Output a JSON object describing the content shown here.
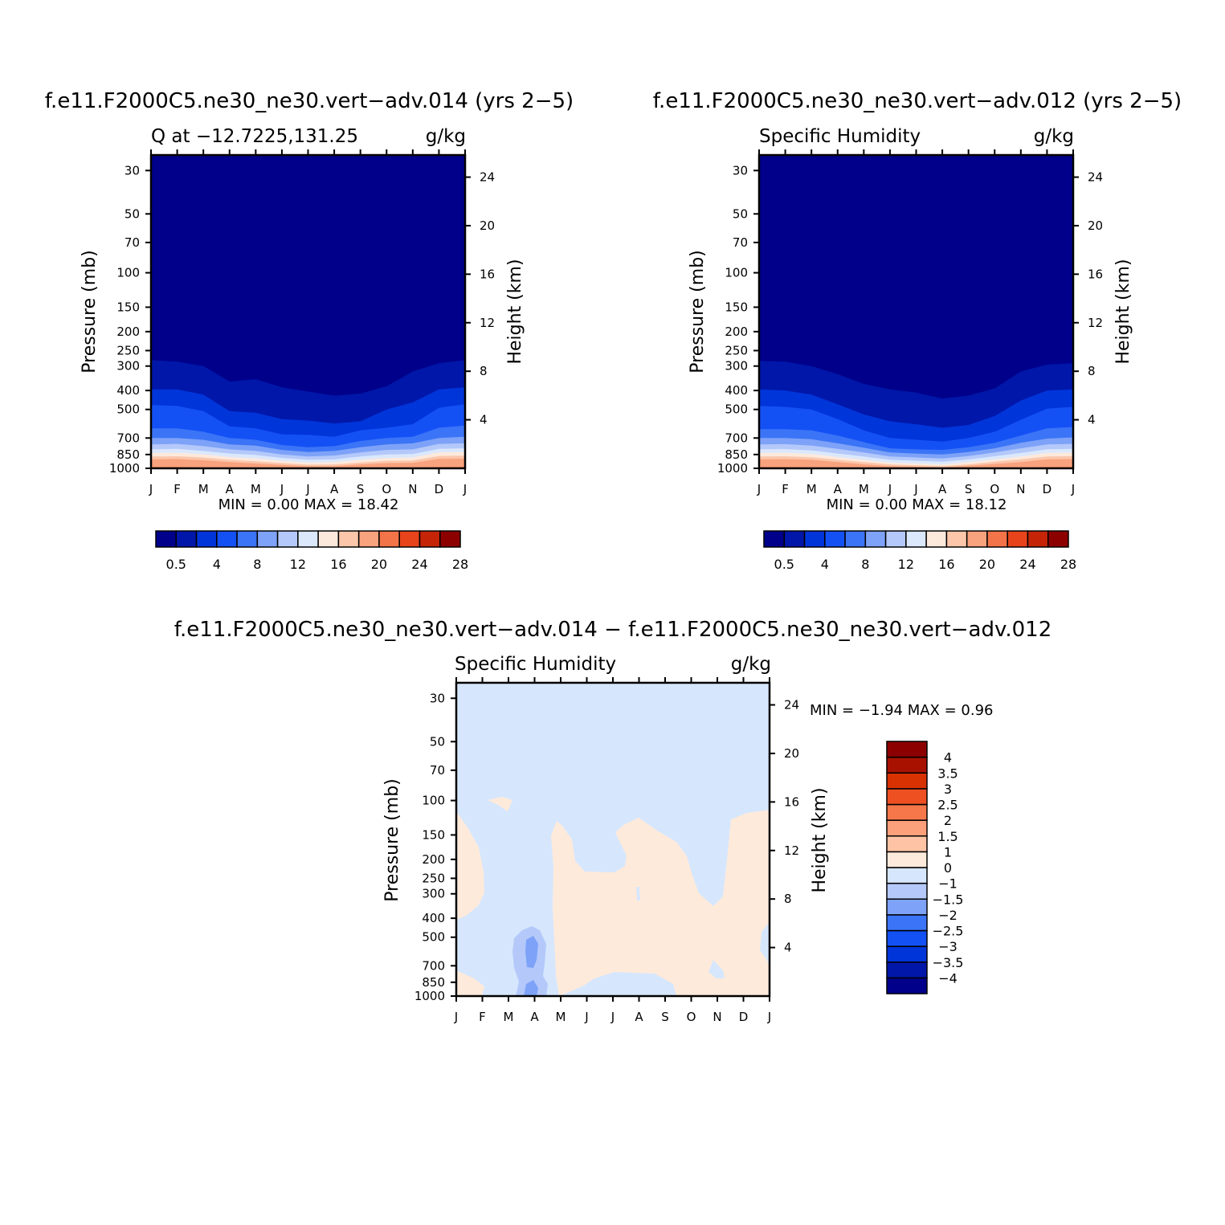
{
  "colors": {
    "q_scale": [
      "#00008a",
      "#0017a9",
      "#0035d9",
      "#1451f5",
      "#3b74f6",
      "#7da2f8",
      "#b4c9fa",
      "#dbe8fc",
      "#fde9dc",
      "#fbc6aa",
      "#f9a27e",
      "#f47449",
      "#e8441c",
      "#c52506",
      "#8d0000"
    ],
    "diff_scale": [
      "#00008a",
      "#0017a9",
      "#0035d9",
      "#1451f5",
      "#3b74f6",
      "#7da2f8",
      "#b4c9fa",
      "#d6e7fd",
      "#feeadb",
      "#fdc3a4",
      "#fba07a",
      "#f6784a",
      "#ee5022",
      "#d83203",
      "#a81100",
      "#8d0000"
    ]
  },
  "panels": {
    "top_left": {
      "title": "f.e11.F2000C5.ne30_ne30.vert−adv.014 (yrs  2−5)",
      "left_label": "Q  at  −12.7225,131.25",
      "units": "g/kg",
      "ylabel": "Pressure  (mb)",
      "y2label": "Height  (km)",
      "stats": "MIN  =      0.00  MAX  =    18.42"
    },
    "top_right": {
      "title": "f.e11.F2000C5.ne30_ne30.vert−adv.012 (yrs  2−5)",
      "left_label": "Specific  Humidity",
      "units": "g/kg",
      "ylabel": "Pressure  (mb)",
      "y2label": "Height  (km)",
      "stats": "MIN  =      0.00  MAX  =    18.12"
    },
    "bottom": {
      "title": "f.e11.F2000C5.ne30_ne30.vert−adv.014  −  f.e11.F2000C5.ne30_ne30.vert−adv.012",
      "left_label": "Specific  Humidity",
      "units": "g/kg",
      "ylabel": "Pressure  (mb)",
      "y2label": "Height  (km)",
      "stats": "MIN  =    −1.94  MAX  =      0.96"
    }
  },
  "chart_data": [
    {
      "type": "heatmap",
      "title": "f.e11.F2000C5.ne30_ne30.vert−adv.014 (yrs  2−5)",
      "subtitle": "Q  at  −12.7225,131.25",
      "units": "g/kg",
      "xlabel": "",
      "ylabel": "Pressure  (mb)",
      "y2label": "Height  (km)",
      "x_ticks": [
        "J",
        "F",
        "M",
        "A",
        "M",
        "J",
        "J",
        "A",
        "S",
        "O",
        "N",
        "D",
        "J"
      ],
      "y_ticks": [
        30,
        50,
        70,
        100,
        150,
        200,
        250,
        300,
        400,
        500,
        700,
        850,
        1000
      ],
      "y2_ticks": [
        4,
        8,
        12,
        16,
        20,
        24
      ],
      "y_scale": "log",
      "ylim": [
        1000,
        25
      ],
      "min": 0.0,
      "max": 18.42,
      "contour_levels": [
        0.5,
        2,
        4,
        6,
        8,
        10,
        12,
        14,
        16,
        18,
        20,
        22,
        24,
        26,
        28
      ],
      "colorbar_labels": [
        "0.5",
        "4",
        "8",
        "12",
        "16",
        "20",
        "24",
        "28"
      ],
      "levels_p": [
        [
          280,
          395,
          475,
          625,
          700,
          755,
          800,
          835,
          870,
          900,
          985
        ],
        [
          285,
          395,
          480,
          625,
          700,
          750,
          795,
          832,
          868,
          897,
          985
        ],
        [
          300,
          420,
          510,
          650,
          715,
          770,
          815,
          848,
          880,
          910,
          990
        ],
        [
          360,
          510,
          610,
          700,
          755,
          800,
          840,
          875,
          905,
          930,
          1000
        ],
        [
          350,
          520,
          625,
          715,
          765,
          815,
          855,
          890,
          920,
          945,
          1000
        ],
        [
          385,
          560,
          670,
          760,
          805,
          850,
          885,
          915,
          940,
          960,
          1000
        ],
        [
          405,
          570,
          675,
          780,
          825,
          870,
          905,
          935,
          958,
          975,
          1000
        ],
        [
          425,
          590,
          690,
          770,
          815,
          860,
          900,
          930,
          955,
          975,
          1000
        ],
        [
          415,
          575,
          640,
          725,
          780,
          830,
          870,
          905,
          935,
          955,
          1000
        ],
        [
          380,
          500,
          620,
          700,
          755,
          805,
          850,
          885,
          915,
          940,
          1000
        ],
        [
          320,
          460,
          595,
          690,
          745,
          800,
          845,
          880,
          912,
          938,
          995
        ],
        [
          290,
          395,
          490,
          620,
          700,
          750,
          795,
          830,
          865,
          895,
          985
        ],
        [
          280,
          385,
          470,
          605,
          690,
          745,
          790,
          826,
          862,
          893,
          983
        ]
      ]
    },
    {
      "type": "heatmap",
      "title": "f.e11.F2000C5.ne30_ne30.vert−adv.012 (yrs  2−5)",
      "subtitle": "Specific  Humidity",
      "units": "g/kg",
      "xlabel": "",
      "ylabel": "Pressure  (mb)",
      "y2label": "Height  (km)",
      "x_ticks": [
        "J",
        "F",
        "M",
        "A",
        "M",
        "J",
        "J",
        "A",
        "S",
        "O",
        "N",
        "D",
        "J"
      ],
      "y_ticks": [
        30,
        50,
        70,
        100,
        150,
        200,
        250,
        300,
        400,
        500,
        700,
        850,
        1000
      ],
      "y2_ticks": [
        4,
        8,
        12,
        16,
        20,
        24
      ],
      "y_scale": "log",
      "ylim": [
        1000,
        25
      ],
      "min": 0.0,
      "max": 18.12,
      "contour_levels": [
        0.5,
        2,
        4,
        6,
        8,
        10,
        12,
        14,
        16,
        18,
        20,
        22,
        24,
        26,
        28
      ],
      "colorbar_labels": [
        "0.5",
        "4",
        "8",
        "12",
        "16",
        "20",
        "24",
        "28"
      ],
      "levels_p": [
        [
          282,
          395,
          480,
          630,
          700,
          755,
          800,
          835,
          870,
          900,
          985
        ],
        [
          285,
          400,
          485,
          630,
          700,
          752,
          797,
          832,
          868,
          898,
          985
        ],
        [
          300,
          420,
          500,
          640,
          710,
          765,
          810,
          845,
          878,
          905,
          990
        ],
        [
          330,
          470,
          560,
          680,
          745,
          795,
          840,
          875,
          905,
          930,
          1000
        ],
        [
          370,
          530,
          640,
          735,
          785,
          830,
          870,
          905,
          930,
          955,
          1000
        ],
        [
          395,
          575,
          700,
          790,
          830,
          870,
          905,
          935,
          955,
          975,
          1000
        ],
        [
          410,
          595,
          715,
          800,
          840,
          880,
          915,
          945,
          965,
          980,
          1000
        ],
        [
          440,
          620,
          730,
          805,
          850,
          890,
          925,
          955,
          975,
          990,
          1000
        ],
        [
          425,
          600,
          700,
          780,
          825,
          865,
          900,
          930,
          955,
          970,
          1000
        ],
        [
          390,
          540,
          650,
          740,
          790,
          830,
          868,
          900,
          925,
          950,
          1000
        ],
        [
          320,
          450,
          565,
          680,
          740,
          790,
          835,
          870,
          900,
          930,
          995
        ],
        [
          295,
          400,
          495,
          625,
          705,
          755,
          800,
          835,
          870,
          900,
          985
        ],
        [
          290,
          395,
          485,
          615,
          695,
          750,
          795,
          830,
          866,
          897,
          984
        ]
      ]
    },
    {
      "type": "heatmap",
      "title": "f.e11.F2000C5.ne30_ne30.vert−adv.014  −  f.e11.F2000C5.ne30_ne30.vert−adv.012",
      "subtitle": "Specific  Humidity",
      "units": "g/kg",
      "xlabel": "",
      "ylabel": "Pressure  (mb)",
      "y2label": "Height  (km)",
      "x_ticks": [
        "J",
        "F",
        "M",
        "A",
        "M",
        "J",
        "J",
        "A",
        "S",
        "O",
        "N",
        "D",
        "J"
      ],
      "y_ticks": [
        30,
        50,
        70,
        100,
        150,
        200,
        250,
        300,
        400,
        500,
        700,
        850,
        1000
      ],
      "y2_ticks": [
        4,
        8,
        12,
        16,
        20,
        24
      ],
      "y_scale": "log",
      "ylim": [
        1000,
        25
      ],
      "min": -1.94,
      "max": 0.96,
      "contour_levels": [
        -4,
        -3.5,
        -3,
        -2.5,
        -2,
        -1.5,
        -1,
        0,
        1,
        1.5,
        2,
        2.5,
        3,
        3.5,
        4
      ],
      "colorbar_labels": [
        "4",
        "3.5",
        "3",
        "2.5",
        "2",
        "1.5",
        "1",
        "0",
        "−1",
        "−1.5",
        "−2",
        "−2.5",
        "−3",
        "−3.5",
        "−4"
      ]
    }
  ]
}
